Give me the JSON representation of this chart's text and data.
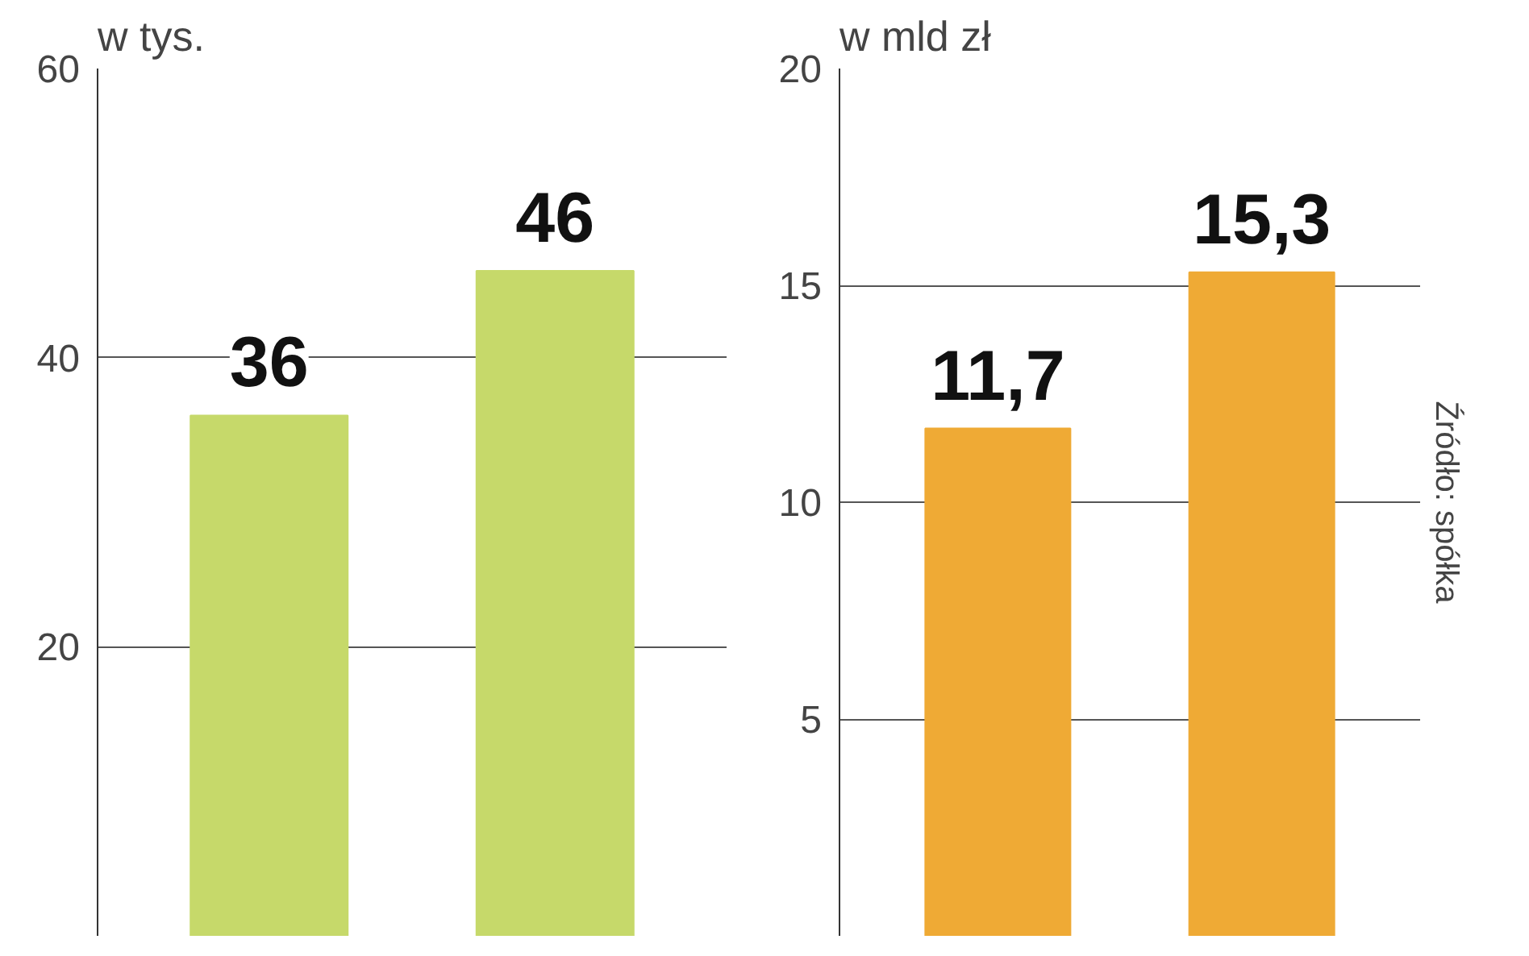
{
  "chart_data": [
    {
      "type": "bar",
      "title": "w tys.",
      "categories": [
        null,
        null
      ],
      "values": [
        36,
        46
      ],
      "color": "#c6d96a",
      "ylim": [
        0,
        60
      ],
      "yticks": [
        20,
        40,
        60
      ],
      "grid": "y",
      "data_labels": true
    },
    {
      "type": "bar",
      "title": "w mld zł",
      "categories": [
        null,
        null
      ],
      "values": [
        11.7,
        15.3
      ],
      "value_labels": [
        "11,7",
        "15,3"
      ],
      "color": "#efaa35",
      "ylim": [
        0,
        20
      ],
      "yticks": [
        5,
        10,
        15,
        20
      ],
      "grid": "y",
      "annotations": [
        "Źródło: spółka"
      ]
    }
  ]
}
